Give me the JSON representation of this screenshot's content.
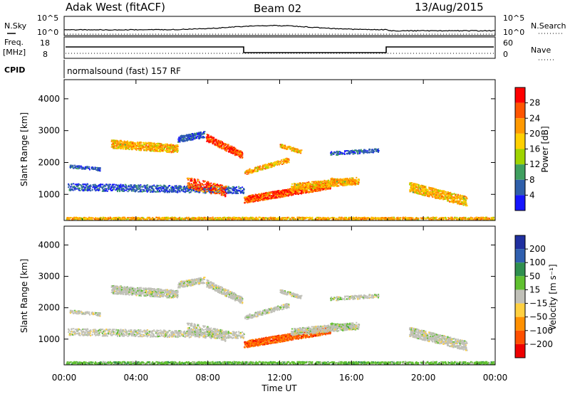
{
  "header": {
    "station": "Adak West (fitACF)",
    "beam": "Beam 02",
    "date": "13/Aug/2015"
  },
  "strip": {
    "nsky_label": "N.Sky",
    "nsky_ticks": [
      "10^5",
      "10^0"
    ],
    "nsearch_label": "N.Search",
    "nsearch_ticks": [
      "10^5",
      "10^0"
    ],
    "freq_label": "Freq.",
    "freq_unit": "[MHz]",
    "freq_ticks": [
      "18",
      "8"
    ],
    "nave_label": "Nave",
    "nave_ticks": [
      "60",
      "0"
    ],
    "cpid_label": "CPID",
    "cpid_text": "normalsound (fast) 157 RF"
  },
  "chart_data": [
    {
      "type": "heatmap",
      "name": "power",
      "ylabel": "Slant Range [km]",
      "yticks": [
        "4000",
        "3000",
        "2000",
        "1000"
      ],
      "colorbar_label": "Power [dB]",
      "colorbar_ticks": [
        "28",
        "24",
        "20",
        "16",
        "12",
        "8",
        "4"
      ],
      "colors": [
        "#ff0000",
        "#ff5500",
        "#ff9900",
        "#ffd000",
        "#9fd400",
        "#3f9f5f",
        "#2f5faa",
        "#1515ff"
      ]
    },
    {
      "type": "heatmap",
      "name": "velocity",
      "ylabel": "Slant Range [km]",
      "yticks": [
        "4000",
        "3000",
        "2000",
        "1000"
      ],
      "colorbar_label": "Velocity [m s⁻¹]",
      "colorbar_ticks": [
        "200",
        "100",
        "50",
        "15",
        "−15",
        "−50",
        "−100",
        "−200"
      ],
      "colors": [
        "#2030a0",
        "#3060b0",
        "#2f8f4f",
        "#60c030",
        "#c0c0b8",
        "#ffd040",
        "#ff9000",
        "#ff5000",
        "#ee0000"
      ]
    }
  ],
  "xaxis": {
    "ticks": [
      "00:00",
      "04:00",
      "08:00",
      "12:00",
      "16:00",
      "20:00",
      "00:00"
    ],
    "label": "Time UT"
  }
}
